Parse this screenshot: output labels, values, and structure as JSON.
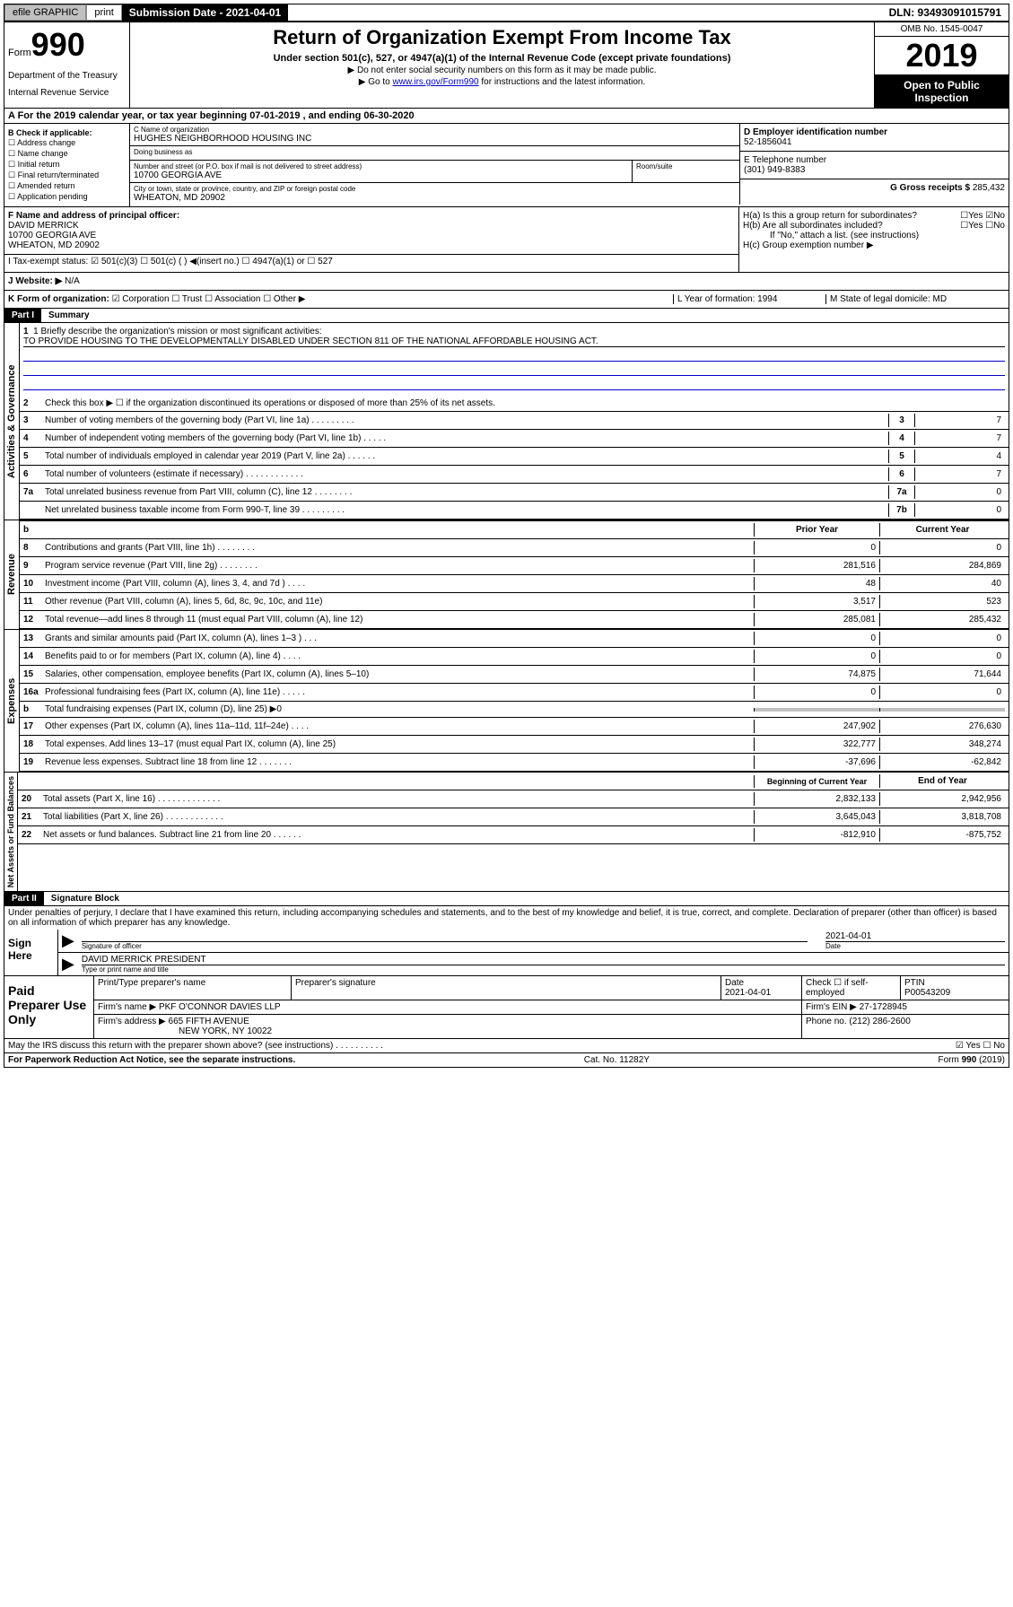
{
  "topbar": {
    "efile": "efile GRAPHIC",
    "print": "print",
    "submission_label": "Submission Date - 2021-04-01",
    "dln": "DLN: 93493091015791"
  },
  "header": {
    "form_label": "Form",
    "form_num": "990",
    "dept1": "Department of the Treasury",
    "dept2": "Internal Revenue Service",
    "title": "Return of Organization Exempt From Income Tax",
    "subtitle": "Under section 501(c), 527, or 4947(a)(1) of the Internal Revenue Code (except private foundations)",
    "note1": "▶ Do not enter social security numbers on this form as it may be made public.",
    "note2_pre": "▶ Go to ",
    "note2_link": "www.irs.gov/Form990",
    "note2_post": " for instructions and the latest information.",
    "omb": "OMB No. 1545-0047",
    "year": "2019",
    "open": "Open to Public Inspection"
  },
  "rowA": "A For the 2019 calendar year, or tax year beginning 07-01-2019     , and ending 06-30-2020",
  "sectionB": {
    "label": "B Check if applicable:",
    "items": [
      "☐ Address change",
      "☐ Name change",
      "☐ Initial return",
      "☐ Final return/terminated",
      "☐ Amended return",
      "☐ Application pending"
    ]
  },
  "sectionC": {
    "name_label": "C Name of organization",
    "name": "HUGHES NEIGHBORHOOD HOUSING INC",
    "dba_label": "Doing business as",
    "addr_label": "Number and street (or P.O. box if mail is not delivered to street address)",
    "room_label": "Room/suite",
    "addr": "10700 GEORGIA AVE",
    "city_label": "City or town, state or province, country, and ZIP or foreign postal code",
    "city": "WHEATON, MD  20902"
  },
  "sectionD": {
    "label": "D Employer identification number",
    "value": "52-1856041"
  },
  "sectionE": {
    "label": "E Telephone number",
    "value": "(301) 949-8383"
  },
  "sectionG": {
    "label": "G Gross receipts $",
    "value": "285,432"
  },
  "sectionF": {
    "label": "F Name and address of principal officer:",
    "name": "DAVID MERRICK",
    "addr1": "10700 GEORGIA AVE",
    "addr2": "WHEATON, MD  20902"
  },
  "sectionH": {
    "ha": "H(a)  Is this a group return for subordinates?",
    "ha_yes": "☐Yes ☑No",
    "hb": "H(b)  Are all subordinates included?",
    "hb_yes": "☐Yes ☐No",
    "hb_note": "If \"No,\" attach a list. (see instructions)",
    "hc": "H(c)  Group exemption number ▶"
  },
  "rowI": {
    "label": "I   Tax-exempt status:",
    "opts": "☑ 501(c)(3)   ☐ 501(c) (  ) ◀(insert no.)    ☐ 4947(a)(1) or  ☐ 527"
  },
  "rowJ": {
    "label": "J   Website: ▶",
    "value": "N/A"
  },
  "rowK": {
    "label": "K Form of organization:",
    "opts": "☑ Corporation ☐ Trust ☐ Association ☐ Other ▶",
    "L": "L Year of formation: 1994",
    "M": "M State of legal domicile: MD"
  },
  "partI": {
    "hdr": "Part I",
    "title": "Summary"
  },
  "summary": {
    "governance_label": "Activities & Governance",
    "revenue_label": "Revenue",
    "expenses_label": "Expenses",
    "netassets_label": "Net Assets or Fund Balances",
    "line1_label": "1  Briefly describe the organization's mission or most significant activities:",
    "mission": "TO PROVIDE HOUSING TO THE DEVELOPMENTALLY DISABLED UNDER SECTION 811 OF THE NATIONAL AFFORDABLE HOUSING ACT.",
    "line2": "Check this box ▶ ☐  if the organization discontinued its operations or disposed of more than 25% of its net assets.",
    "lines_gov": [
      {
        "n": "3",
        "t": "Number of voting members of the governing body (Part VI, line 1a)  .  .  .  .  .  .  .  .  .",
        "box": "3",
        "v": "7"
      },
      {
        "n": "4",
        "t": "Number of independent voting members of the governing body (Part VI, line 1b)  .  .  .  .  .",
        "box": "4",
        "v": "7"
      },
      {
        "n": "5",
        "t": "Total number of individuals employed in calendar year 2019 (Part V, line 2a)  .  .  .  .  .  .",
        "box": "5",
        "v": "4"
      },
      {
        "n": "6",
        "t": "Total number of volunteers (estimate if necessary)  .  .  .  .  .  .  .  .  .  .  .  .",
        "box": "6",
        "v": "7"
      },
      {
        "n": "7a",
        "t": "Total unrelated business revenue from Part VIII, column (C), line 12  .  .  .  .  .  .  .  .",
        "box": "7a",
        "v": "0"
      },
      {
        "n": "",
        "t": "Net unrelated business taxable income from Form 990-T, line 39  .  .  .  .  .  .  .  .  .",
        "box": "7b",
        "v": "0"
      }
    ],
    "col_headers": {
      "b": "b",
      "prior": "Prior Year",
      "current": "Current Year"
    },
    "lines_rev": [
      {
        "n": "8",
        "t": "Contributions and grants (Part VIII, line 1h)  .  .  .  .  .  .  .  .",
        "p": "0",
        "c": "0"
      },
      {
        "n": "9",
        "t": "Program service revenue (Part VIII, line 2g)  .  .  .  .  .  .  .  .",
        "p": "281,516",
        "c": "284,869"
      },
      {
        "n": "10",
        "t": "Investment income (Part VIII, column (A), lines 3, 4, and 7d )  .  .  .  .",
        "p": "48",
        "c": "40"
      },
      {
        "n": "11",
        "t": "Other revenue (Part VIII, column (A), lines 5, 6d, 8c, 9c, 10c, and 11e)",
        "p": "3,517",
        "c": "523"
      },
      {
        "n": "12",
        "t": "Total revenue—add lines 8 through 11 (must equal Part VIII, column (A), line 12)",
        "p": "285,081",
        "c": "285,432"
      }
    ],
    "lines_exp": [
      {
        "n": "13",
        "t": "Grants and similar amounts paid (Part IX, column (A), lines 1–3 )  .  .  .",
        "p": "0",
        "c": "0"
      },
      {
        "n": "14",
        "t": "Benefits paid to or for members (Part IX, column (A), line 4)  .  .  .  .",
        "p": "0",
        "c": "0"
      },
      {
        "n": "15",
        "t": "Salaries, other compensation, employee benefits (Part IX, column (A), lines 5–10)",
        "p": "74,875",
        "c": "71,644"
      },
      {
        "n": "16a",
        "t": "Professional fundraising fees (Part IX, column (A), line 11e)  .  .  .  .  .",
        "p": "0",
        "c": "0"
      },
      {
        "n": "b",
        "t": "Total fundraising expenses (Part IX, column (D), line 25) ▶0",
        "p": "",
        "c": "",
        "shaded": true
      },
      {
        "n": "17",
        "t": "Other expenses (Part IX, column (A), lines 11a–11d, 11f–24e)  .  .  .  .",
        "p": "247,902",
        "c": "276,630"
      },
      {
        "n": "18",
        "t": "Total expenses. Add lines 13–17 (must equal Part IX, column (A), line 25)",
        "p": "322,777",
        "c": "348,274"
      },
      {
        "n": "19",
        "t": "Revenue less expenses. Subtract line 18 from line 12  .  .  .  .  .  .  .",
        "p": "-37,696",
        "c": "-62,842"
      }
    ],
    "col_headers2": {
      "prior": "Beginning of Current Year",
      "current": "End of Year"
    },
    "lines_net": [
      {
        "n": "20",
        "t": "Total assets (Part X, line 16)  .  .  .  .  .  .  .  .  .  .  .  .  .",
        "p": "2,832,133",
        "c": "2,942,956"
      },
      {
        "n": "21",
        "t": "Total liabilities (Part X, line 26)  .  .  .  .  .  .  .  .  .  .  .  .",
        "p": "3,645,043",
        "c": "3,818,708"
      },
      {
        "n": "22",
        "t": "Net assets or fund balances. Subtract line 21 from line 20  .  .  .  .  .  .",
        "p": "-812,910",
        "c": "-875,752"
      }
    ]
  },
  "partII": {
    "hdr": "Part II",
    "title": "Signature Block"
  },
  "signature": {
    "perjury": "Under penalties of perjury, I declare that I have examined this return, including accompanying schedules and statements, and to the best of my knowledge and belief, it is true, correct, and complete. Declaration of preparer (other than officer) is based on all information of which preparer has any knowledge.",
    "sign_here": "Sign Here",
    "sig_label": "Signature of officer",
    "date": "2021-04-01",
    "date_label": "Date",
    "name": "DAVID MERRICK PRESIDENT",
    "name_label": "Type or print name and title"
  },
  "paid": {
    "label": "Paid Preparer Use Only",
    "r1": {
      "c1": "Print/Type preparer's name",
      "c2": "Preparer's signature",
      "c3": "Date",
      "c3v": "2021-04-01",
      "c4": "Check ☐ if self-employed",
      "c5": "PTIN",
      "c5v": "P00543209"
    },
    "r2": {
      "c1": "Firm's name     ▶",
      "c1v": "PKF O'CONNOR DAVIES LLP",
      "c2": "Firm's EIN ▶",
      "c2v": "27-1728945"
    },
    "r3": {
      "c1": "Firm's address ▶",
      "c1v": "665 FIFTH AVENUE",
      "c1v2": "NEW YORK, NY  10022",
      "c2": "Phone no.",
      "c2v": "(212) 286-2600"
    }
  },
  "footer": {
    "discuss": "May the IRS discuss this return with the preparer shown above? (see instructions)  .  .  .  .  .  .  .  .  .  .",
    "yes_no": "☑ Yes  ☐ No",
    "paperwork": "For Paperwork Reduction Act Notice, see the separate instructions.",
    "cat": "Cat. No. 11282Y",
    "form": "Form 990 (2019)"
  }
}
